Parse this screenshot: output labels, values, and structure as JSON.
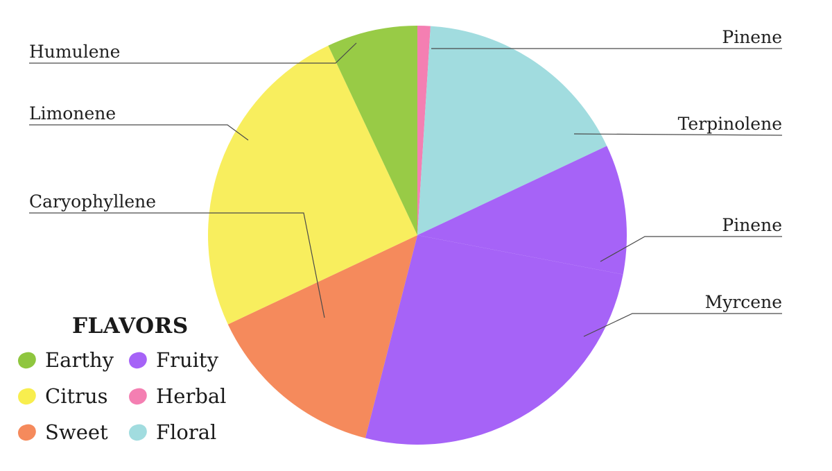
{
  "chart_data": {
    "type": "pie",
    "slices": [
      {
        "label": "Pinene",
        "value": 1,
        "flavor": "Herbal",
        "color": "#f47fb2"
      },
      {
        "label": "Terpinolene",
        "value": 17,
        "flavor": "Floral",
        "color": "#a1dcdf"
      },
      {
        "label": "Pinene",
        "value": 10,
        "flavor": "Fruity",
        "color": "#a663f7"
      },
      {
        "label": "Myrcene",
        "value": 26,
        "flavor": "Fruity",
        "color": "#a663f7"
      },
      {
        "label": "Caryophyllene",
        "value": 14,
        "flavor": "Sweet",
        "color": "#f58a5c"
      },
      {
        "label": "Limonene",
        "value": 25,
        "flavor": "Citrus",
        "color": "#f8ee5e"
      },
      {
        "label": "Humulene",
        "value": 7,
        "flavor": "Earthy",
        "color": "#98cb46"
      }
    ],
    "legend": {
      "title": "FLAVORS",
      "placement": "bottom-left",
      "items": [
        {
          "label": "Earthy",
          "color": "#8fc63f"
        },
        {
          "label": "Fruity",
          "color": "#a663f7"
        },
        {
          "label": "Citrus",
          "color": "#f8ee4e"
        },
        {
          "label": "Herbal",
          "color": "#f47fb2"
        },
        {
          "label": "Sweet",
          "color": "#f58a5c"
        },
        {
          "label": "Floral",
          "color": "#a1dcdf"
        }
      ]
    }
  }
}
